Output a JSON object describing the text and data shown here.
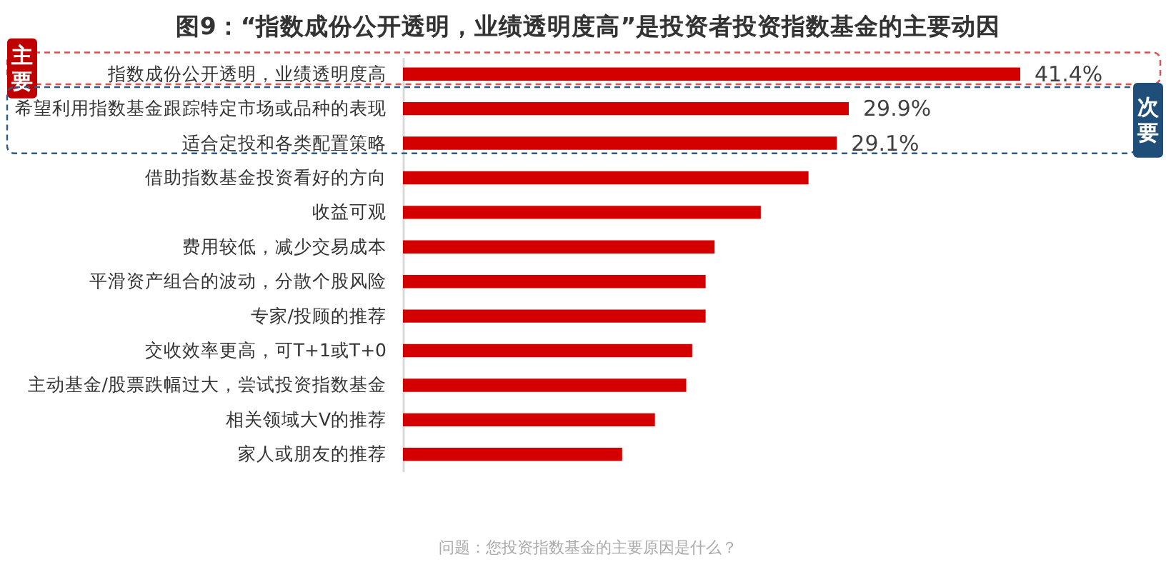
{
  "chart_data": {
    "type": "bar",
    "orientation": "horizontal",
    "title": "图9：“指数成份公开透明，业绩透明度高”是投资者投资指数基金的主要动因",
    "categories": [
      "指数成份公开透明，业绩透明度高",
      "希望利用指数基金跟踪特定市场或品种的表现",
      "适合定投和各类配置策略",
      "借助指数基金投资看好的方向",
      "收益可观",
      "费用较低，减少交易成本",
      "平滑资产组合的波动，分散个股风险",
      "专家/投顾的推荐",
      "交收效率更高，可T+1或T+0",
      "主动基金/股票跌幅过大，尝试投资指数基金",
      "相关领域大V的推荐",
      "家人或朋友的推荐"
    ],
    "values": [
      41.4,
      29.9,
      29.1,
      27.2,
      24.0,
      20.9,
      20.3,
      20.3,
      19.4,
      19.0,
      16.9,
      14.7
    ],
    "value_labels": [
      "41.4%",
      "29.9%",
      "29.1%",
      null,
      null,
      null,
      null,
      null,
      null,
      null,
      null,
      null
    ],
    "color": "#d40000",
    "annotations": [
      "主要",
      "次要",
      "问题：您投资指数基金的主要原因是什么？"
    ],
    "grid": false
  }
}
